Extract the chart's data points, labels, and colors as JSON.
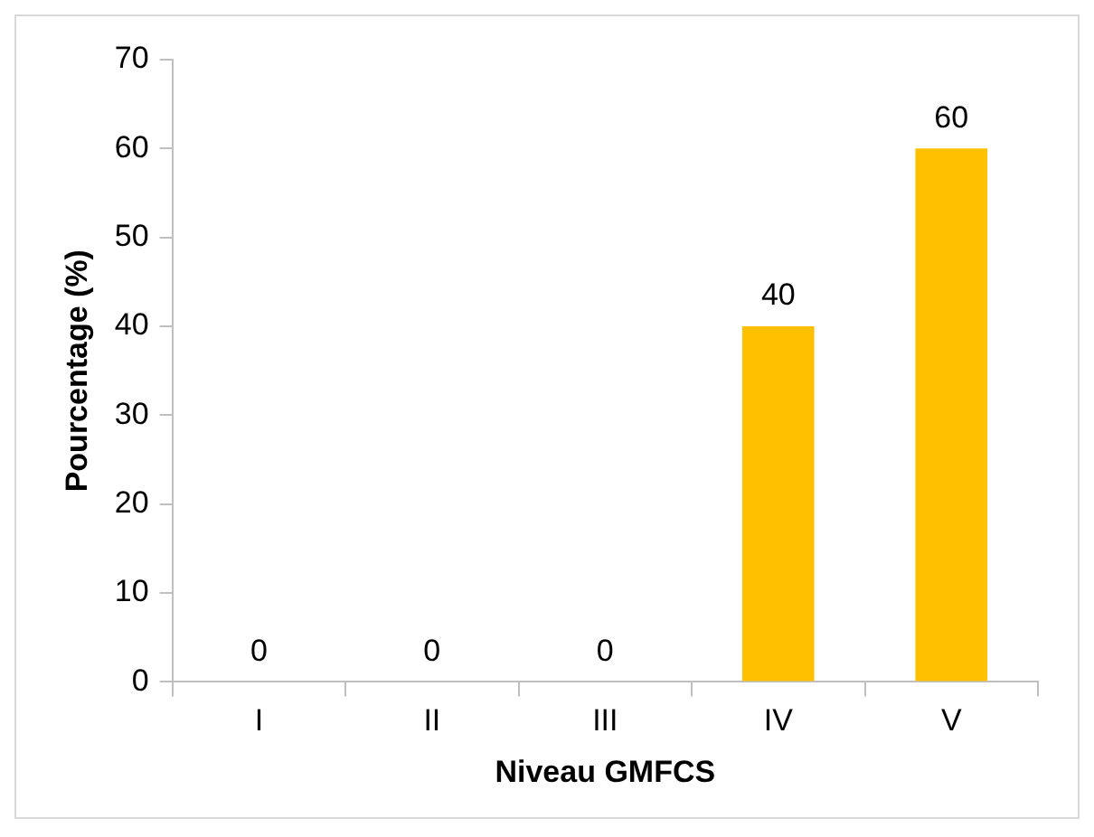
{
  "chart_data": {
    "type": "bar",
    "xlabel": "Niveau GMFCS",
    "ylabel": "Pourcentage (%)",
    "categories": [
      "I",
      "II",
      "III",
      "IV",
      "V"
    ],
    "values": [
      0,
      0,
      0,
      40,
      60
    ],
    "color": "#ffc000",
    "ylim": [
      0,
      70
    ],
    "yticks": [
      0,
      10,
      20,
      30,
      40,
      50,
      60,
      70
    ],
    "grid": false,
    "legend": false,
    "data_labels": true
  }
}
